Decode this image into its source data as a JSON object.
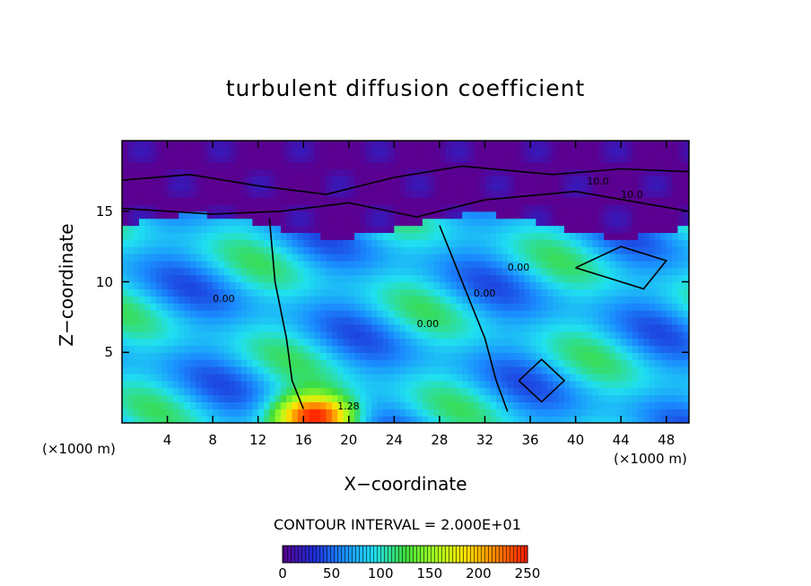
{
  "chart_data": {
    "type": "heatmap",
    "title": "turbulent diffusion coefficient",
    "xlabel": "X−coordinate",
    "ylabel": "Z−coordinate",
    "x_unit_label_left": "(×1000 m)",
    "x_unit_label_right": "(×1000 m)",
    "xlim": [
      0,
      50
    ],
    "ylim": [
      0,
      20
    ],
    "x_ticks": [
      4,
      8,
      12,
      16,
      20,
      24,
      28,
      32,
      36,
      40,
      44,
      48
    ],
    "x_tick_labels": [
      "4",
      "8",
      "12",
      "16",
      "20",
      "24",
      "28",
      "32",
      "36",
      "40",
      "44",
      "48"
    ],
    "y_ticks": [
      5,
      10,
      15
    ],
    "y_tick_labels": [
      "5",
      "10",
      "15"
    ],
    "contour_interval_text": "CONTOUR INTERVAL = 2.000E+01",
    "contour_labels": [
      "10.0",
      "10.0",
      "0.00",
      "0.00",
      "0.00",
      "0.00",
      "1.28"
    ],
    "colorbar": {
      "range": [
        0,
        250
      ],
      "tick_labels": [
        "0",
        "50",
        "100",
        "150",
        "200",
        "250"
      ],
      "colors": [
        "#5a0090",
        "#1e2bd6",
        "#1a8cff",
        "#20e0f0",
        "#3ddc3d",
        "#a8ff20",
        "#ffe000",
        "#ff8000",
        "#ff1a00"
      ]
    },
    "regions": [
      {
        "desc": "upper layer",
        "z": [
          14,
          20
        ],
        "value": 0
      },
      {
        "desc": "interior",
        "z": [
          0,
          14
        ],
        "value_range": [
          40,
          120
        ]
      },
      {
        "desc": "peak near surface",
        "x": 17,
        "z": 0.5,
        "value": 250
      }
    ]
  }
}
